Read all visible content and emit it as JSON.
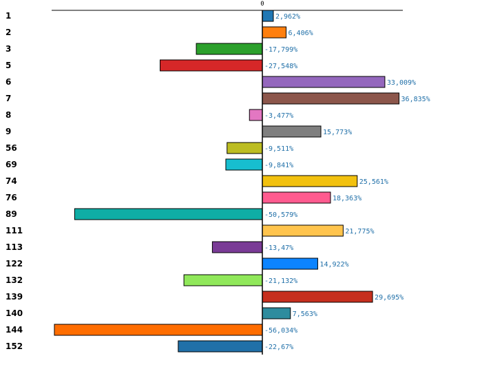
{
  "chart_data": {
    "type": "bar",
    "orientation": "horizontal",
    "categories": [
      "1",
      "2",
      "3",
      "5",
      "6",
      "7",
      "8",
      "9",
      "56",
      "69",
      "74",
      "76",
      "89",
      "111",
      "113",
      "122",
      "132",
      "139",
      "140",
      "144",
      "152"
    ],
    "values": [
      2.962,
      6.406,
      -17.799,
      -27.548,
      33.009,
      36.835,
      -3.477,
      15.773,
      -9.511,
      -9.841,
      25.561,
      18.363,
      -50.579,
      21.775,
      -13.47,
      14.922,
      -21.132,
      29.695,
      7.563,
      -56.034,
      -22.67
    ],
    "value_labels": [
      "2,962%",
      "6,406%",
      "-17,799%",
      "-27,548%",
      "33,009%",
      "36,835%",
      "-3,477%",
      "15,773%",
      "-9,511%",
      "-9,841%",
      "25,561%",
      "18,363%",
      "-50,579%",
      "21,775%",
      "-13,47%",
      "14,922%",
      "-21,132%",
      "29,695%",
      "7,563%",
      "-56,034%",
      "-22,67%"
    ],
    "colors": [
      "#1f77b4",
      "#ff7f0e",
      "#2ca02c",
      "#d62728",
      "#9467bd",
      "#8c564b",
      "#e377c2",
      "#7f7f7f",
      "#bcbd22",
      "#17becf",
      "#f2c10f",
      "#ff5b8f",
      "#0fada5",
      "#ffc44d",
      "#7a3b96",
      "#0c84ff",
      "#90e85a",
      "#c62f1e",
      "#2e8c9e",
      "#ff6d00",
      "#2070a8"
    ],
    "zero_tick_label": "0",
    "xlim": [
      -56.9,
      38.0
    ],
    "title": "",
    "xlabel": "",
    "ylabel": ""
  }
}
